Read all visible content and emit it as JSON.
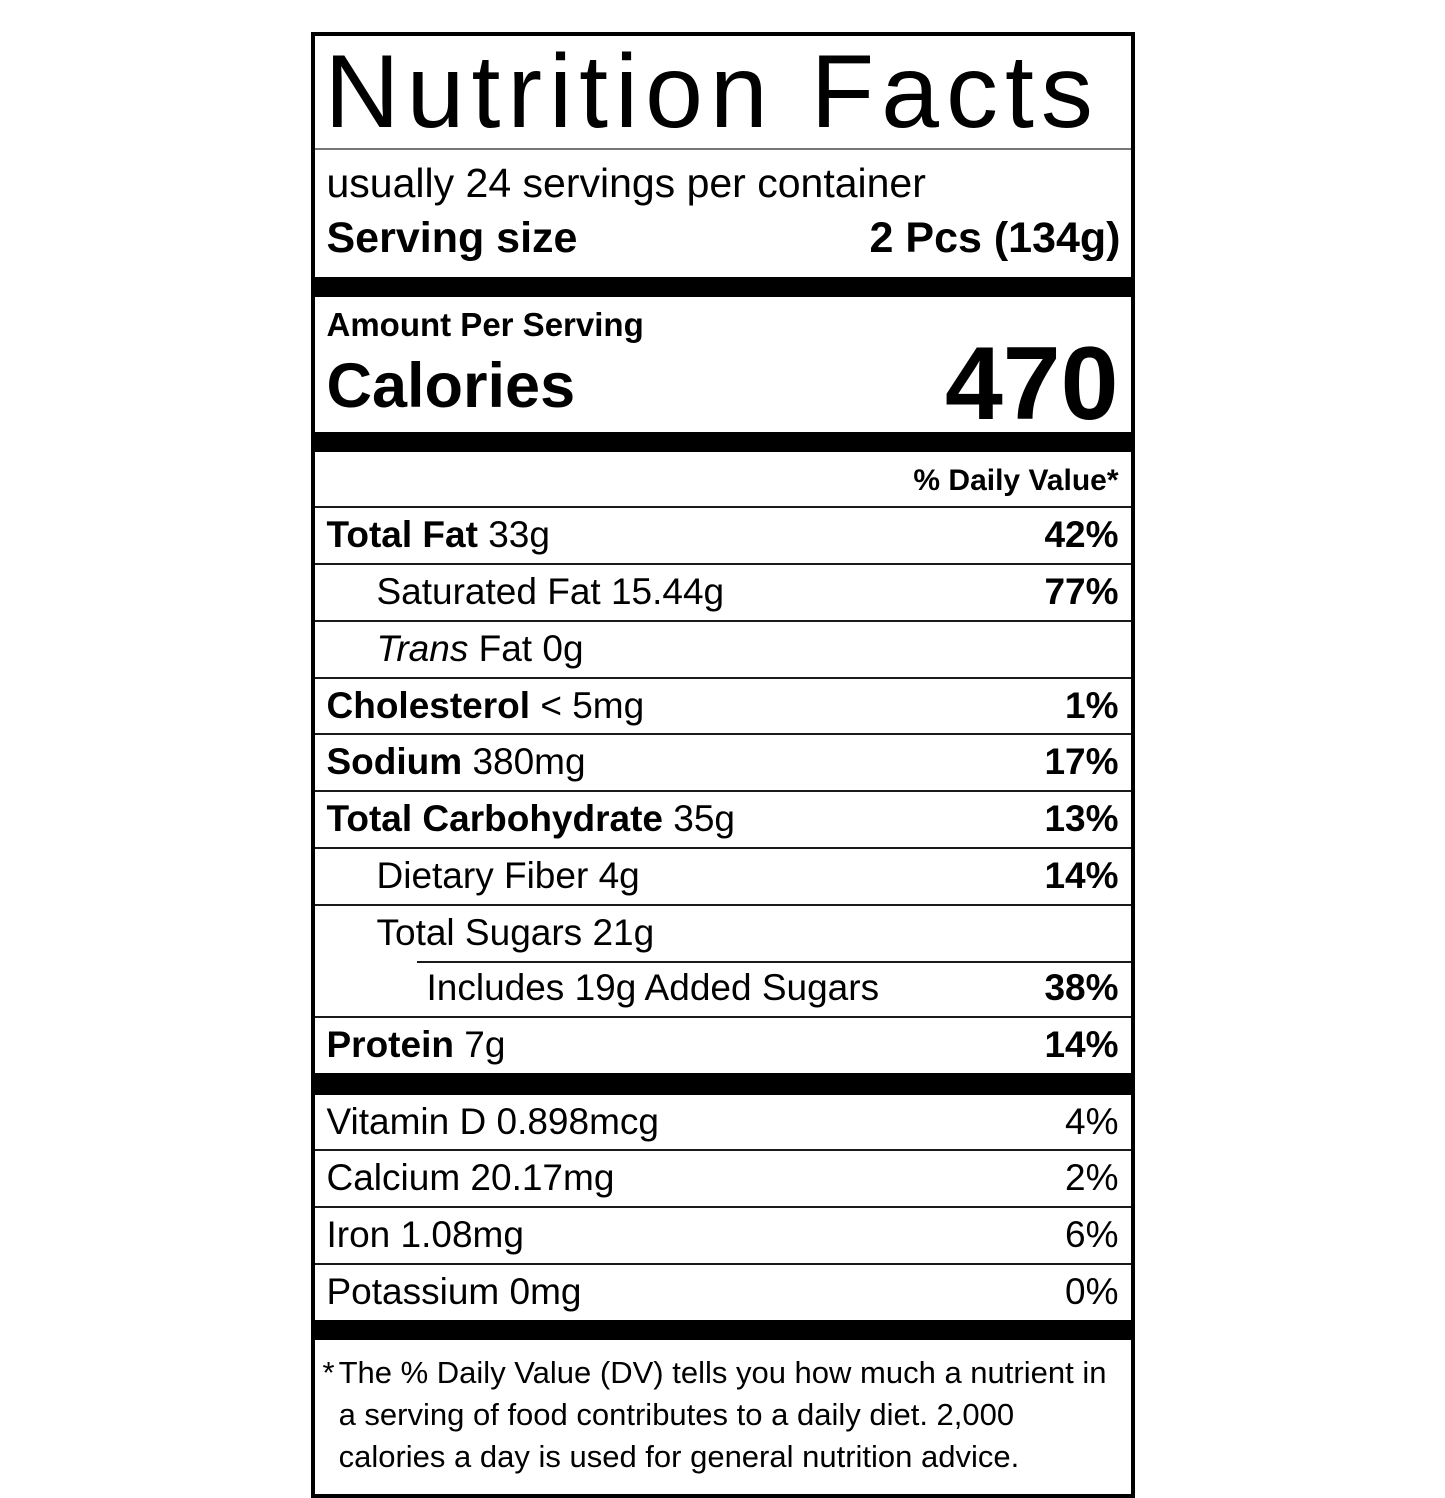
{
  "label": {
    "title": "Nutrition Facts",
    "servings_line": "usually 24 servings per container",
    "serving_size": {
      "label": "Serving size",
      "value": "2 Pcs (134g)"
    },
    "amount_per_serving": "Amount Per Serving",
    "calories": {
      "label": "Calories",
      "value": "470"
    },
    "daily_value_header": "% Daily Value*",
    "nutrients": [
      {
        "name": "Total Fat",
        "amount": "33g",
        "dv": "42%"
      },
      {
        "name": "Saturated Fat",
        "amount": "15.44g",
        "dv": "77%"
      },
      {
        "prefix_italic": "Trans",
        "name": "Fat",
        "amount": "0g",
        "dv": ""
      },
      {
        "name": "Cholesterol",
        "amount": "< 5mg",
        "dv": "1%"
      },
      {
        "name": "Sodium",
        "amount": "380mg",
        "dv": "17%"
      },
      {
        "name": "Total Carbohydrate",
        "amount": "35g",
        "dv": "13%"
      },
      {
        "name": "Dietary Fiber",
        "amount": "4g",
        "dv": "14%"
      },
      {
        "name": "Total Sugars",
        "amount": "21g",
        "dv": ""
      },
      {
        "name": "Includes 19g Added Sugars",
        "amount": "",
        "dv": "38%"
      },
      {
        "name": "Protein",
        "amount": "7g",
        "dv": "14%"
      }
    ],
    "micronutrients": [
      {
        "name": "Vitamin D",
        "amount": "0.898mcg",
        "dv": "4%"
      },
      {
        "name": "Calcium",
        "amount": "20.17mg",
        "dv": "2%"
      },
      {
        "name": "Iron",
        "amount": "1.08mg",
        "dv": "6%"
      },
      {
        "name": "Potassium",
        "amount": "0mg",
        "dv": "0%"
      }
    ],
    "footnote": {
      "marker": "*",
      "text": "The % Daily Value (DV) tells you how much a nutrient in a serving of food contributes to a daily diet. 2,000 calories a day is used for general nutrition advice."
    }
  }
}
